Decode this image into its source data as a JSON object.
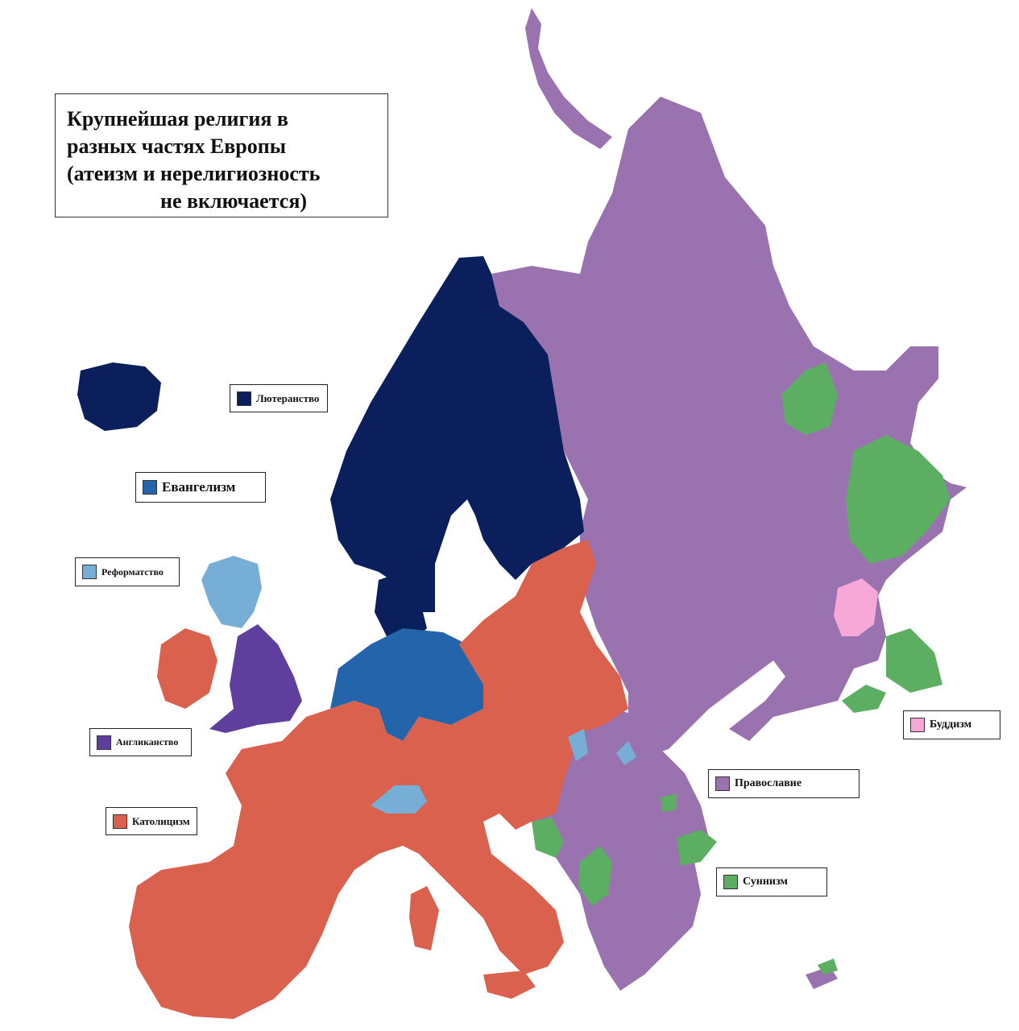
{
  "title": {
    "lines": [
      "Крупнейшая религия в",
      "разных частях Европы",
      "(атеизм и нерелигиозность",
      "не включается)"
    ]
  },
  "colors": {
    "lutheranism": "#0b1f5c",
    "evangelism": "#2364ab",
    "reformed": "#77aed6",
    "anglicanism": "#5e3f9e",
    "catholicism": "#d9614e",
    "orthodoxy": "#9b72b0",
    "sunnism": "#5caf62",
    "buddhism": "#f7a8d6"
  },
  "legend": {
    "lutheranism": "Лютеранство",
    "evangelism": "Евангелизм",
    "reformed": "Реформатство",
    "anglicanism": "Англиканство",
    "catholicism": "Католицизм",
    "orthodoxy": "Православие",
    "sunnism": "Суннизм",
    "buddhism": "Буддизм"
  }
}
